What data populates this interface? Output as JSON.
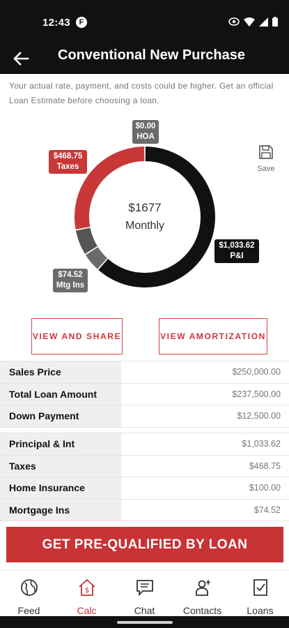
{
  "status": {
    "time": "12:43",
    "notif_icon": "F"
  },
  "header": {
    "title": "Conventional New Purchase"
  },
  "disclaimer": "Your actual rate, payment, and costs could be higher. Get an official Loan Estimate before choosing a loan.",
  "chart": {
    "center_amount": "$1677",
    "center_label": "Monthly",
    "save_label": "Save",
    "tags": {
      "hoa": "$0.00\nHOA",
      "taxes": "$468.75\nTaxes",
      "pi": "$1,033.62\nP&I",
      "mi": "$74.52\nMtg Ins"
    }
  },
  "chart_data": {
    "type": "pie",
    "categories": [
      "P&I",
      "Taxes",
      "HOA",
      "Mtg Ins",
      "Home Insurance"
    ],
    "values": [
      1033.62,
      468.75,
      0.0,
      74.52,
      100.0
    ],
    "colors": [
      "#111111",
      "#c83838",
      "#6b6b6b",
      "#6b6b6b",
      "#555555"
    ]
  },
  "buttons": {
    "share": "VIEW AND SHARE",
    "amortization": "VIEW AMORTIZATION",
    "cta": "GET PRE-QUALIFIED BY LOAN"
  },
  "loan_table": [
    {
      "label": "Sales Price",
      "value": "$250,000.00"
    },
    {
      "label": "Total Loan Amount",
      "value": "$237,500.00"
    },
    {
      "label": "Down Payment",
      "value": "$12,500.00"
    }
  ],
  "payment_table": [
    {
      "label": "Principal & Int",
      "value": "$1,033.62"
    },
    {
      "label": "Taxes",
      "value": "$468.75"
    },
    {
      "label": "Home Insurance",
      "value": "$100.00"
    },
    {
      "label": "Mortgage Ins",
      "value": "$74.52"
    }
  ],
  "nav": {
    "feed": "Feed",
    "calc": "Calc",
    "chat": "Chat",
    "contacts": "Contacts",
    "loans": "Loans"
  }
}
